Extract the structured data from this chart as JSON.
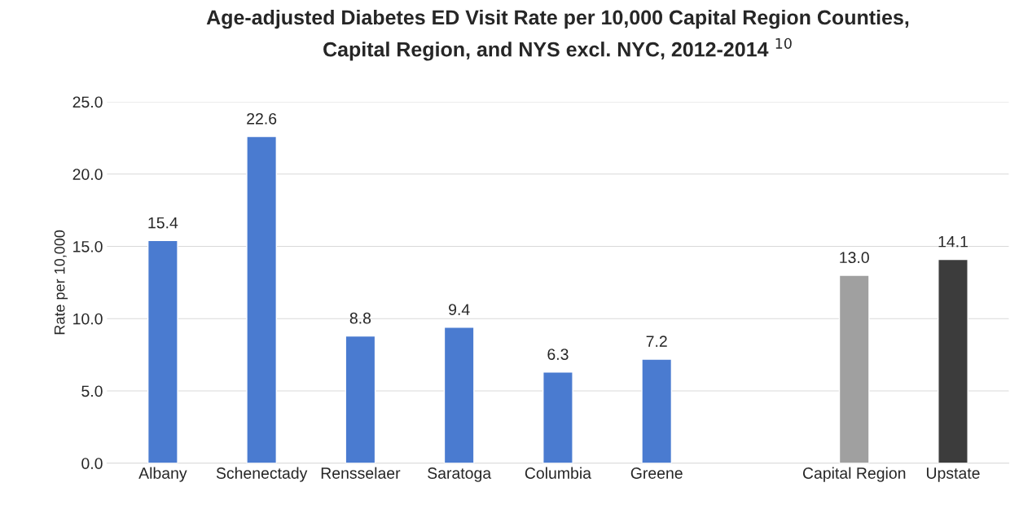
{
  "chart_data": {
    "type": "bar",
    "title": "Age-adjusted Diabetes ED Visit Rate per 10,000 Capital Region Counties,\nCapital Region, and NYS excl. NYC, 2012-2014 $^{10}$",
    "ylabel": "Rate per 10,000",
    "categories": [
      "Albany",
      "Schenectady",
      "Rensselaer",
      "Saratoga",
      "Columbia",
      "Greene",
      null,
      "Capital Region",
      "Upstate"
    ],
    "values": [
      15.4,
      22.6,
      8.8,
      9.4,
      6.3,
      7.2,
      null,
      13.0,
      14.1
    ],
    "colors": [
      "#4a7bd0",
      "#4a7bd0",
      "#4a7bd0",
      "#4a7bd0",
      "#4a7bd0",
      "#4a7bd0",
      "#4a7bd0",
      "#a0a0a0",
      "#3c3c3c"
    ],
    "value_labels": [
      "15.4",
      "22.6",
      "8.8",
      "9.4",
      "6.3",
      "7.2",
      null,
      "13.0",
      "14.1"
    ],
    "ylim": [
      0,
      25
    ],
    "yticks": [
      {
        "value": 0,
        "label": "0.0"
      },
      {
        "value": 5,
        "label": "5.0"
      },
      {
        "value": 10,
        "label": "10.0"
      },
      {
        "value": 15,
        "label": "15.0"
      },
      {
        "value": 20,
        "label": "20.0"
      },
      {
        "value": 25,
        "label": "25.0"
      }
    ],
    "grid": "y",
    "legend": false
  }
}
